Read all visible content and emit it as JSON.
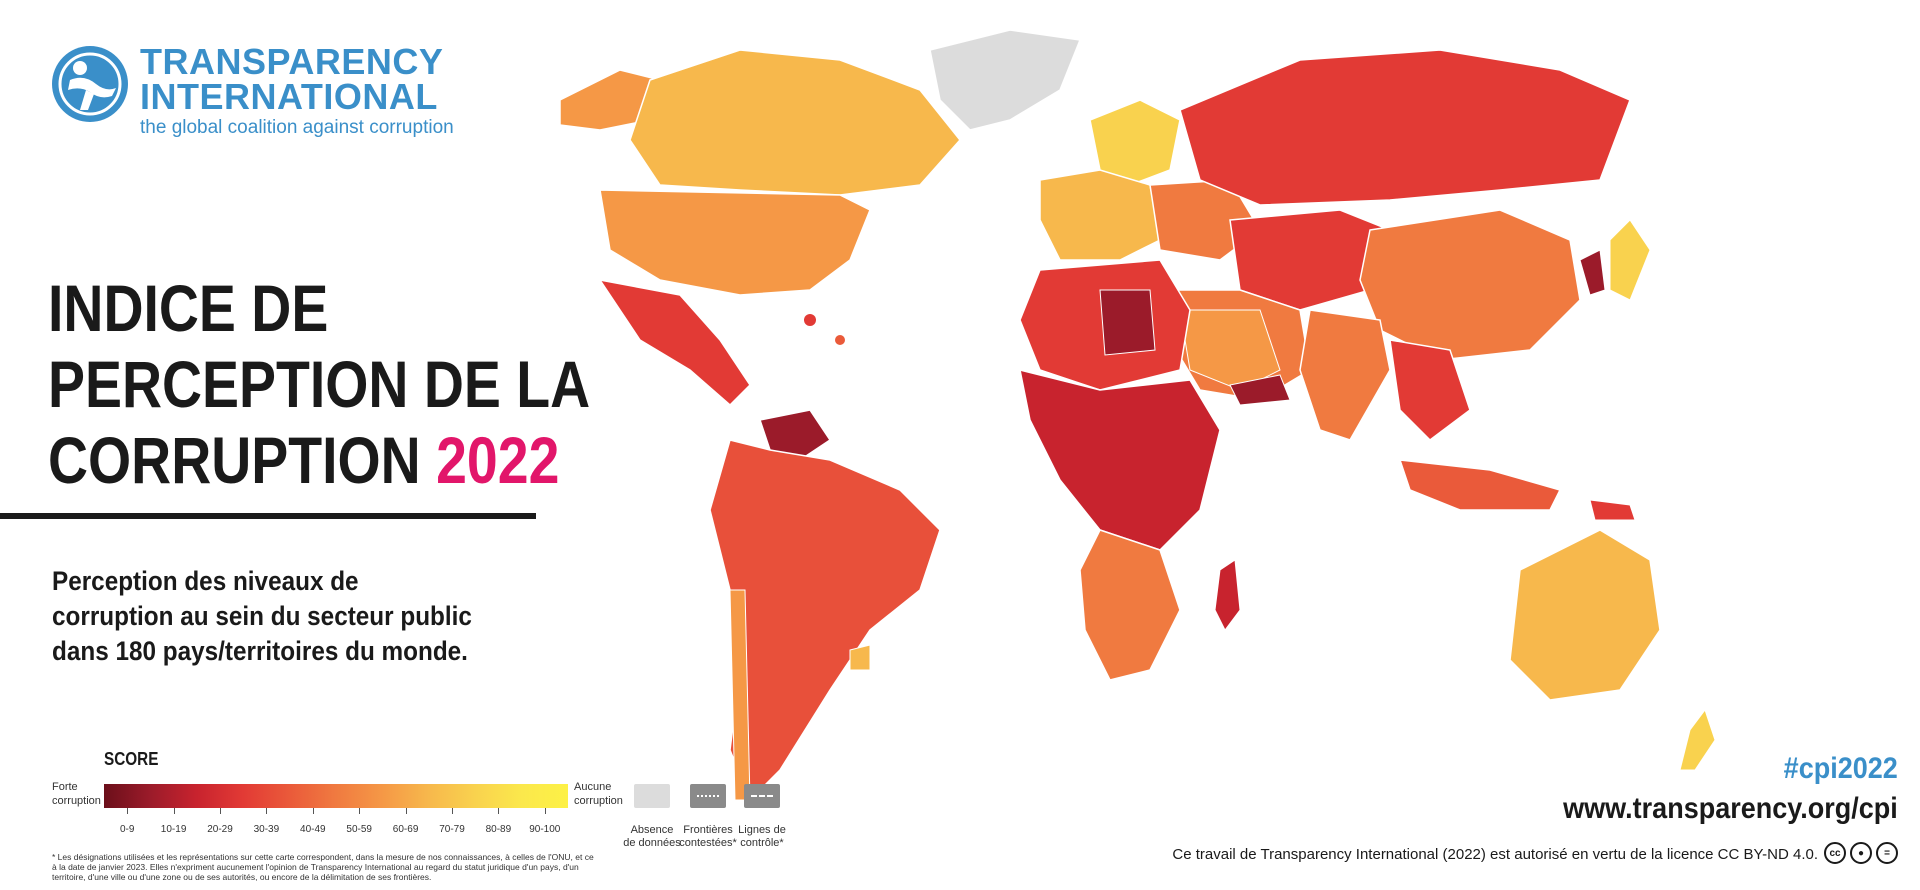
{
  "logo": {
    "line1": "TRANSPARENCY",
    "line2": "INTERNATIONAL",
    "tagline": "the global coalition against corruption",
    "icon": "globe-person-icon",
    "color": "#3a8fc9"
  },
  "title": {
    "line1": "INDICE DE",
    "line2": "PERCEPTION DE LA",
    "line3": "CORRUPTION",
    "year": "2022",
    "year_color": "#e2166a"
  },
  "subtitle": {
    "line1": "Perception des niveaux de",
    "line2": "corruption au sein du secteur public",
    "line3": "dans 180 pays/territoires du monde."
  },
  "legend": {
    "title": "SCORE",
    "left_label": [
      "Forte",
      "corruption"
    ],
    "right_label": [
      "Aucune",
      "corruption"
    ],
    "ranges": [
      "0-9",
      "10-19",
      "20-29",
      "30-39",
      "40-49",
      "50-59",
      "60-69",
      "70-79",
      "80-89",
      "90-100"
    ],
    "colors": [
      "#6b0f1a",
      "#9b1b2a",
      "#c8232e",
      "#e23a35",
      "#ea5a3a",
      "#f07a40",
      "#f59846",
      "#f7b84c",
      "#f9d24e",
      "#fdf146"
    ],
    "no_data": [
      "Absence",
      "de données"
    ],
    "disputed": [
      "Frontières",
      "contestées*"
    ],
    "control": [
      "Lignes de",
      "contrôle*"
    ],
    "no_data_color": "#dcdcdc"
  },
  "footnote": "* Les désignations utilisées et les représentations sur cette carte correspondent, dans la mesure de nos connaissances, à celles de l'ONU, et ce à la date de janvier 2023. Elles n'expriment aucunement l'opinion de Transparency International au regard du statut juridique d'un pays, d'un territoire, d'une ville ou d'une zone ou de ses autorités, ou encore de la délimitation de ses frontières.",
  "hashtag": "#cpi2022",
  "url": "www.transparency.org/cpi",
  "license": "Ce travail de Transparency International (2022) est autorisé en vertu de la licence CC BY-ND 4.0.",
  "license_icons": [
    "cc-icon",
    "by-icon",
    "nd-icon"
  ]
}
